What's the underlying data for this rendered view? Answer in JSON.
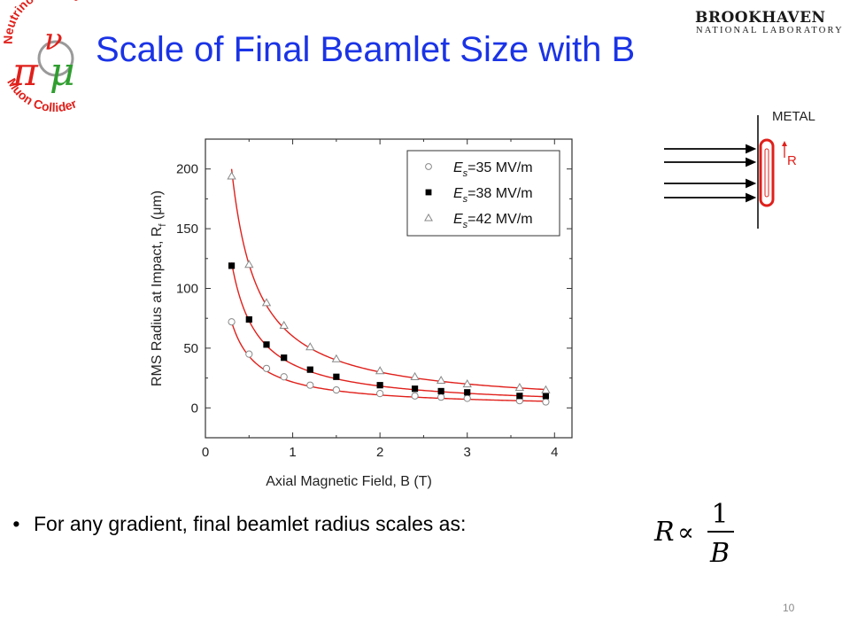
{
  "slide": {
    "title": "Scale of Final Beamlet Size with B",
    "page_number": "10",
    "bullet": "For any gradient, final beamlet radius scales as:",
    "formula": {
      "lhs": "R",
      "relation": "∝",
      "numerator": "1",
      "denominator": "B"
    },
    "colors": {
      "title": "#1a33e6",
      "fit_curve": "#e0201b",
      "logo_red": "#e0201b",
      "logo_green": "#2f9e2f"
    }
  },
  "logos": {
    "left": {
      "arc_top": "Neutrino Factory",
      "arc_bottom": "Muon Collider",
      "glyphs": [
        "ν",
        "π",
        "μ"
      ]
    },
    "right": {
      "name": "BROOKHAVEN",
      "subtitle": "NATIONAL LABORATORY"
    }
  },
  "diagram": {
    "label_metal": "METAL",
    "label_radius": "R",
    "icon": "beamlet-impact-diagram",
    "arrow_count": 4
  },
  "chart_data": {
    "type": "scatter",
    "title": "",
    "xlabel": "Axial Magnetic Field, B (T)",
    "ylabel": "RMS Radius at Impact, R_f (μm)",
    "xlim": [
      0,
      4.2
    ],
    "ylim": [
      -25,
      225
    ],
    "xticks": [
      0,
      1,
      2,
      3,
      4
    ],
    "yticks": [
      0,
      50,
      100,
      150,
      200
    ],
    "grid": false,
    "legend_position": "top-right",
    "fit": "curves of the form y = a/x",
    "series": [
      {
        "name": "E_s=35 MV/m",
        "marker": "open-circle",
        "x": [
          0.3,
          0.5,
          0.7,
          0.9,
          1.2,
          1.5,
          2.0,
          2.4,
          2.7,
          3.0,
          3.6,
          3.9
        ],
        "y": [
          72,
          45,
          33,
          26,
          19,
          15,
          12,
          10,
          9,
          8,
          6,
          5
        ],
        "fit_a": 21.6
      },
      {
        "name": "E_s=38 MV/m",
        "marker": "filled-square",
        "x": [
          0.3,
          0.5,
          0.7,
          0.9,
          1.2,
          1.5,
          2.0,
          2.4,
          2.7,
          3.0,
          3.6,
          3.9
        ],
        "y": [
          119,
          74,
          53,
          42,
          32,
          26,
          19,
          16,
          14,
          13,
          10,
          10
        ],
        "fit_a": 36.5
      },
      {
        "name": "E_s=42 MV/m",
        "marker": "open-triangle",
        "x": [
          0.3,
          0.5,
          0.7,
          0.9,
          1.2,
          1.5,
          2.0,
          2.4,
          2.7,
          3.0,
          3.6,
          3.9
        ],
        "y": [
          194,
          120,
          88,
          69,
          51,
          41,
          31,
          26,
          23,
          20,
          17,
          15
        ],
        "fit_a": 60.0
      }
    ]
  }
}
